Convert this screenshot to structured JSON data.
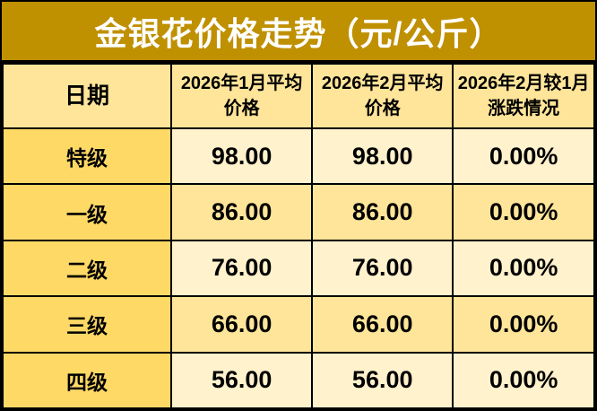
{
  "chart_data": {
    "type": "table",
    "title": "金银花价格走势（元/公斤）",
    "columns": [
      "日期",
      "2026年1月平均价格",
      "2026年2月平均价格",
      "2026年2月较1月涨跌情况"
    ],
    "rows": [
      {
        "grade": "特级",
        "jan": "98.00",
        "feb": "98.00",
        "change": "0.00%"
      },
      {
        "grade": "一级",
        "jan": "86.00",
        "feb": "86.00",
        "change": "0.00%"
      },
      {
        "grade": "二级",
        "jan": "76.00",
        "feb": "76.00",
        "change": "0.00%"
      },
      {
        "grade": "三级",
        "jan": "66.00",
        "feb": "66.00",
        "change": "0.00%"
      },
      {
        "grade": "四级",
        "jan": "56.00",
        "feb": "56.00",
        "change": "0.00%"
      }
    ],
    "layout_hints": {
      "title_position": "top",
      "grid": "all-borders",
      "unit": "元/公斤"
    }
  },
  "colors": {
    "title_bg": "#BF9000",
    "title_text": "#FFFFFF",
    "header_bg": "#FFE599",
    "label_col_bg": "#FFD966",
    "row_odd_bg": "#FFF2CC",
    "row_even_bg": "#FFE599",
    "border": "#000000",
    "body_text": "#000000"
  }
}
